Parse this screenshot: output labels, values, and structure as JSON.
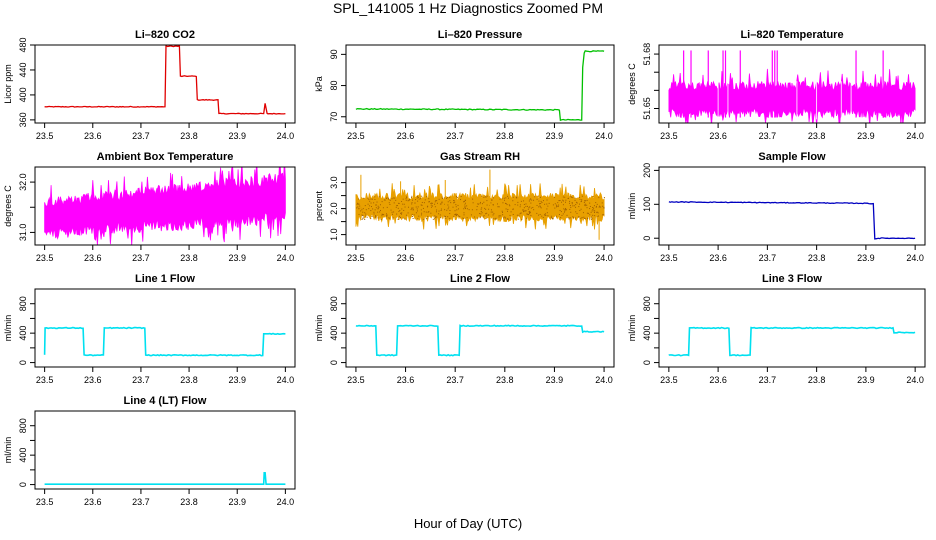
{
  "page": {
    "title": "SPL_141005  1 Hz Diagnostics Zoomed PM",
    "xlabel": "Hour of Day (UTC)"
  },
  "chart_data": [
    {
      "type": "line",
      "title": "Li–820 CO2",
      "ylabel": "Licor ppm",
      "xlim": [
        23.5,
        24.0
      ],
      "ylim": [
        355,
        480
      ],
      "xticks": [
        "23.5",
        "23.6",
        "23.7",
        "23.8",
        "23.9",
        "24.0"
      ],
      "yticks": [
        {
          "v": 360,
          "label": "360"
        },
        {
          "v": 400,
          "label": "400"
        },
        {
          "v": 440,
          "label": "440"
        },
        {
          "v": 480,
          "label": "480"
        }
      ],
      "color": "#e00000",
      "noise": 0.6,
      "band": false,
      "series": [
        {
          "x": [
            23.5,
            23.75,
            23.752,
            23.78,
            23.782,
            23.815,
            23.817,
            23.86,
            23.862,
            23.955,
            23.958,
            23.962,
            23.964,
            24.0
          ],
          "y": [
            381,
            381,
            478,
            478,
            430,
            430,
            392,
            392,
            370,
            370,
            386,
            370,
            370,
            370
          ]
        }
      ]
    },
    {
      "type": "line",
      "title": "Li–820 Pressure",
      "ylabel": "kPa",
      "xlim": [
        23.5,
        24.0
      ],
      "ylim": [
        68,
        93
      ],
      "xticks": [
        "23.5",
        "23.6",
        "23.7",
        "23.8",
        "23.9",
        "24.0"
      ],
      "yticks": [
        {
          "v": 70,
          "label": "70"
        },
        {
          "v": 80,
          "label": "80"
        },
        {
          "v": 90,
          "label": "90"
        }
      ],
      "color": "#00c000",
      "noise": 0.15,
      "band": false,
      "series": [
        {
          "x": [
            23.5,
            23.91,
            23.912,
            23.955,
            23.957,
            23.96,
            23.962,
            24.0
          ],
          "y": [
            72.5,
            72.2,
            69,
            69,
            86,
            90.5,
            91,
            91
          ]
        }
      ]
    },
    {
      "type": "band",
      "title": "Li–820 Temperature",
      "ylabel": "degrees C",
      "xlim": [
        23.5,
        24.0
      ],
      "ylim": [
        51.642,
        51.685
      ],
      "xticks": [
        "23.5",
        "23.6",
        "23.7",
        "23.8",
        "23.9",
        "24.0"
      ],
      "yticks": [
        {
          "v": 51.65,
          "label": "51.65"
        },
        {
          "v": 51.66,
          "label": ""
        },
        {
          "v": 51.67,
          "label": ""
        },
        {
          "v": 51.68,
          "label": "51.68"
        }
      ],
      "color": "#ff00ff",
      "band": true,
      "series": [
        {
          "x": [
            23.5,
            24.0
          ],
          "low": [
            51.645,
            51.645
          ],
          "high": [
            51.665,
            51.665
          ]
        }
      ]
    },
    {
      "type": "band",
      "title": "Ambient Box Temperature",
      "ylabel": "degrees C",
      "xlim": [
        23.5,
        24.0
      ],
      "ylim": [
        30.75,
        32.3
      ],
      "xticks": [
        "23.5",
        "23.6",
        "23.7",
        "23.8",
        "23.9",
        "24.0"
      ],
      "yticks": [
        {
          "v": 31.0,
          "label": "31.0"
        },
        {
          "v": 31.5,
          "label": ""
        },
        {
          "v": 32.0,
          "label": "32.0"
        }
      ],
      "color": "#ff00ff",
      "band": true,
      "series": [
        {
          "x": [
            23.5,
            23.6,
            23.7,
            23.8,
            23.9,
            24.0
          ],
          "low": [
            30.85,
            30.95,
            31.0,
            31.05,
            31.1,
            31.15
          ],
          "high": [
            31.7,
            31.8,
            31.9,
            32.0,
            32.1,
            32.2
          ]
        }
      ]
    },
    {
      "type": "band",
      "title": "Gas Stream RH",
      "ylabel": "percent",
      "xlim": [
        23.5,
        24.0
      ],
      "ylim": [
        0.6,
        3.6
      ],
      "xticks": [
        "23.5",
        "23.6",
        "23.7",
        "23.8",
        "23.9",
        "24.0"
      ],
      "yticks": [
        {
          "v": 1.0,
          "label": "1.0"
        },
        {
          "v": 1.5,
          "label": ""
        },
        {
          "v": 2.0,
          "label": "2.0"
        },
        {
          "v": 2.5,
          "label": ""
        },
        {
          "v": 3.0,
          "label": "3.0"
        }
      ],
      "color": "#e8a000",
      "band": true,
      "series": [
        {
          "x": [
            23.5,
            24.0
          ],
          "low": [
            1.5,
            1.5
          ],
          "high": [
            2.6,
            2.6
          ]
        }
      ]
    },
    {
      "type": "line",
      "title": "Sample Flow",
      "ylabel": "ml/min",
      "xlim": [
        23.5,
        24.0
      ],
      "ylim": [
        -20,
        210
      ],
      "xticks": [
        "23.5",
        "23.6",
        "23.7",
        "23.8",
        "23.9",
        "24.0"
      ],
      "yticks": [
        {
          "v": 0,
          "label": "0"
        },
        {
          "v": 100,
          "label": "100"
        },
        {
          "v": 200,
          "label": "200"
        }
      ],
      "color": "#0000c0",
      "noise": 1.0,
      "band": false,
      "series": [
        {
          "x": [
            23.5,
            23.9,
            23.915,
            23.918,
            23.925,
            24.0
          ],
          "y": [
            107,
            103,
            102,
            -2,
            0,
            0
          ]
        }
      ]
    },
    {
      "type": "line",
      "title": "Line 1 Flow",
      "ylabel": "ml/min",
      "xlim": [
        23.5,
        24.0
      ],
      "ylim": [
        -60,
        1000
      ],
      "xticks": [
        "23.5",
        "23.6",
        "23.7",
        "23.8",
        "23.9",
        "24.0"
      ],
      "yticks": [
        {
          "v": 0,
          "label": "0"
        },
        {
          "v": 200,
          "label": ""
        },
        {
          "v": 400,
          "label": "400"
        },
        {
          "v": 600,
          "label": ""
        },
        {
          "v": 800,
          "label": "800"
        }
      ],
      "color": "#00e0f0",
      "noise": 6,
      "band": false,
      "series": [
        {
          "x": [
            23.5,
            23.501,
            23.58,
            23.582,
            23.622,
            23.624,
            23.708,
            23.71,
            23.953,
            23.955,
            24.0
          ],
          "y": [
            100,
            470,
            470,
            100,
            100,
            470,
            470,
            100,
            100,
            390,
            390
          ]
        }
      ]
    },
    {
      "type": "line",
      "title": "Line 2 Flow",
      "ylabel": "ml/min",
      "xlim": [
        23.5,
        24.0
      ],
      "ylim": [
        -60,
        1000
      ],
      "xticks": [
        "23.5",
        "23.6",
        "23.7",
        "23.8",
        "23.9",
        "24.0"
      ],
      "yticks": [
        {
          "v": 0,
          "label": "0"
        },
        {
          "v": 200,
          "label": ""
        },
        {
          "v": 400,
          "label": "400"
        },
        {
          "v": 600,
          "label": ""
        },
        {
          "v": 800,
          "label": "800"
        }
      ],
      "color": "#00e0f0",
      "noise": 6,
      "band": false,
      "series": [
        {
          "x": [
            23.5,
            23.54,
            23.542,
            23.582,
            23.584,
            23.665,
            23.667,
            23.708,
            23.71,
            23.955,
            23.957,
            24.0
          ],
          "y": [
            500,
            500,
            100,
            100,
            500,
            500,
            100,
            100,
            500,
            500,
            420,
            420
          ]
        }
      ]
    },
    {
      "type": "line",
      "title": "Line 3 Flow",
      "ylabel": "ml/min",
      "xlim": [
        23.5,
        24.0
      ],
      "ylim": [
        -60,
        1000
      ],
      "xticks": [
        "23.5",
        "23.6",
        "23.7",
        "23.8",
        "23.9",
        "24.0"
      ],
      "yticks": [
        {
          "v": 0,
          "label": "0"
        },
        {
          "v": 200,
          "label": ""
        },
        {
          "v": 400,
          "label": "400"
        },
        {
          "v": 600,
          "label": ""
        },
        {
          "v": 800,
          "label": "800"
        }
      ],
      "color": "#00e0f0",
      "noise": 6,
      "band": false,
      "series": [
        {
          "x": [
            23.5,
            23.501,
            23.54,
            23.542,
            23.622,
            23.624,
            23.665,
            23.667,
            23.955,
            23.957,
            24.0
          ],
          "y": [
            100,
            100,
            100,
            470,
            470,
            100,
            100,
            470,
            470,
            410,
            410
          ]
        }
      ]
    },
    {
      "type": "line",
      "title": "Line 4 (LT) Flow",
      "ylabel": "ml/min",
      "xlim": [
        23.5,
        24.0
      ],
      "ylim": [
        -60,
        1000
      ],
      "xticks": [
        "23.5",
        "23.6",
        "23.7",
        "23.8",
        "23.9",
        "24.0"
      ],
      "yticks": [
        {
          "v": 0,
          "label": "0"
        },
        {
          "v": 200,
          "label": ""
        },
        {
          "v": 400,
          "label": "400"
        },
        {
          "v": 600,
          "label": ""
        },
        {
          "v": 800,
          "label": "800"
        }
      ],
      "color": "#00e0f0",
      "noise": 0,
      "band": false,
      "series": [
        {
          "x": [
            23.5,
            23.955,
            23.956,
            23.958,
            23.96,
            24.0
          ],
          "y": [
            5,
            5,
            160,
            160,
            5,
            5
          ]
        }
      ]
    }
  ]
}
